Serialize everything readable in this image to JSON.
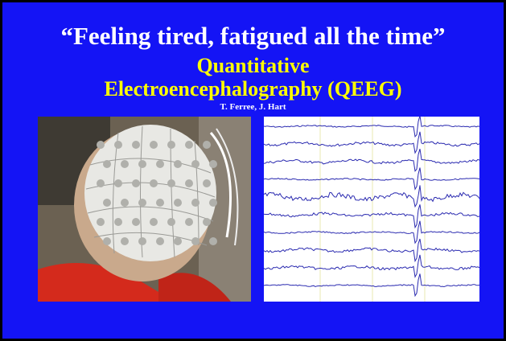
{
  "slide": {
    "title": "“Feeling tired, fatigued all the time”",
    "subtitle_lines": [
      "Quantitative",
      "Electroencephalography (QEEG)"
    ],
    "authors": "T. Ferree, J. Hart"
  }
}
